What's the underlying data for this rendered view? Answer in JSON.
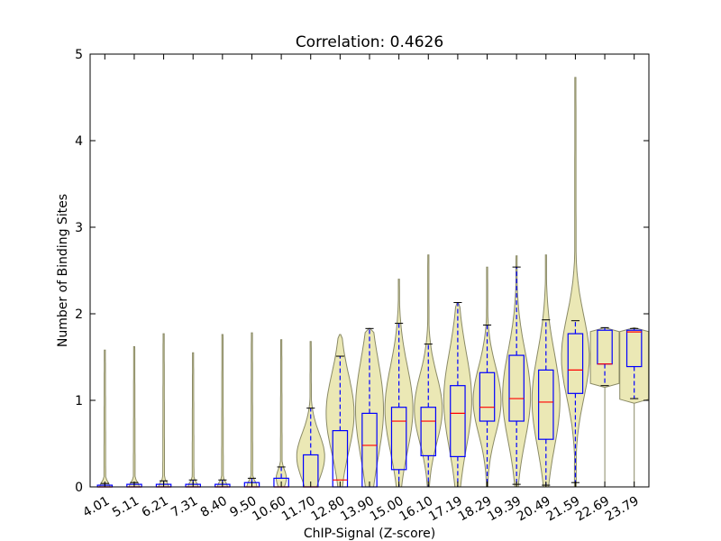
{
  "chart_data": {
    "type": "violin+box",
    "title": "Correlation: 0.4626",
    "xlabel": "ChIP-Signal (Z-score)",
    "ylabel": "Number of Binding Sites",
    "ylim": [
      0,
      5
    ],
    "yticks": [
      "0",
      "1",
      "2",
      "3",
      "4",
      "5"
    ],
    "grid": false,
    "categories": [
      "4.01",
      "5.11",
      "6.21",
      "7.31",
      "8.40",
      "9.50",
      "10.60",
      "11.70",
      "12.80",
      "13.90",
      "15.00",
      "16.10",
      "17.19",
      "18.29",
      "19.39",
      "20.49",
      "21.59",
      "22.69",
      "23.79"
    ],
    "box": {
      "median": [
        0,
        0,
        0,
        0,
        0,
        0,
        0,
        0,
        0.08,
        0.48,
        0.76,
        0.76,
        0.85,
        0.92,
        1.02,
        0.98,
        1.35,
        1.42,
        1.79
      ],
      "q1": [
        0,
        0,
        0,
        0,
        0,
        0,
        0,
        0,
        0,
        0,
        0.2,
        0.36,
        0.35,
        0.76,
        0.76,
        0.55,
        1.08,
        1.42,
        1.39
      ],
      "q3": [
        0.02,
        0.03,
        0.03,
        0.03,
        0.03,
        0.05,
        0.1,
        0.37,
        0.65,
        0.85,
        0.92,
        0.92,
        1.17,
        1.32,
        1.52,
        1.35,
        1.77,
        1.81,
        1.81
      ],
      "whisker_low": [
        0,
        0,
        0,
        0,
        0,
        0,
        0,
        0,
        0,
        0,
        0,
        0,
        0,
        0,
        0.03,
        0.02,
        0.05,
        1.17,
        1.02
      ],
      "whisker_high": [
        0.04,
        0.05,
        0.07,
        0.08,
        0.08,
        0.1,
        0.23,
        0.91,
        1.51,
        1.83,
        1.89,
        1.65,
        2.13,
        1.87,
        2.54,
        1.93,
        1.92,
        1.84,
        1.83
      ]
    },
    "violin": {
      "max": [
        1.58,
        1.62,
        1.77,
        1.55,
        1.76,
        1.78,
        1.7,
        1.68,
        1.76,
        1.83,
        2.4,
        2.68,
        2.13,
        2.54,
        2.67,
        2.68,
        4.73,
        1.84,
        1.84
      ],
      "bulge_center": [
        0,
        0,
        0,
        0,
        0,
        0,
        0.1,
        0.35,
        0.85,
        0.9,
        0.9,
        0.9,
        1.0,
        1.0,
        1.05,
        1.0,
        1.5,
        1.5,
        1.5
      ]
    },
    "colors": {
      "violin_fill": "#e8e4a8",
      "violin_edge": "#8a8a66",
      "box_edge": "#0000ff",
      "median": "#ff0000",
      "whisker_cap": "#000000"
    }
  }
}
